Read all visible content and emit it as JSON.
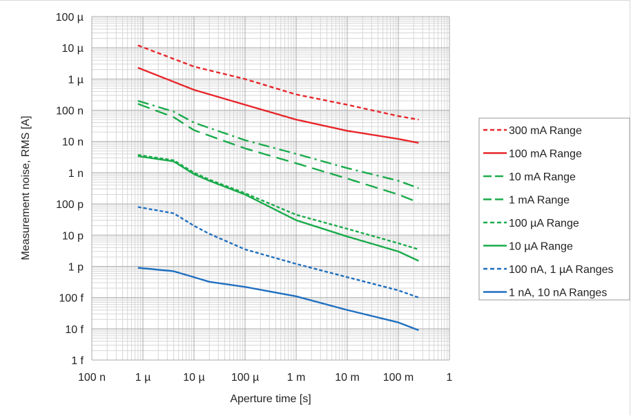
{
  "chart_data": {
    "type": "line",
    "title": "",
    "xlabel": "Aperture time [s]",
    "ylabel": "Measurement noise, RMS [A]",
    "x_scale": "log",
    "y_scale": "log",
    "xlim": [
      1e-07,
      1
    ],
    "ylim": [
      1e-15,
      0.0001
    ],
    "x_ticks": [
      {
        "value": 1e-07,
        "label": "100 n"
      },
      {
        "value": 1e-06,
        "label": "1 µ"
      },
      {
        "value": 1e-05,
        "label": "10 µ"
      },
      {
        "value": 0.0001,
        "label": "100 µ"
      },
      {
        "value": 0.001,
        "label": "1 m"
      },
      {
        "value": 0.01,
        "label": "10 m"
      },
      {
        "value": 0.1,
        "label": "100 m"
      },
      {
        "value": 1,
        "label": "1"
      }
    ],
    "y_ticks": [
      {
        "value": 0.0001,
        "label": "100 µ"
      },
      {
        "value": 1e-05,
        "label": "10 µ"
      },
      {
        "value": 1e-06,
        "label": "1 µ"
      },
      {
        "value": 1e-07,
        "label": "100 n"
      },
      {
        "value": 1e-08,
        "label": "10 n"
      },
      {
        "value": 1e-09,
        "label": "1 n"
      },
      {
        "value": 1e-10,
        "label": "100 p"
      },
      {
        "value": 1e-11,
        "label": "10 p"
      },
      {
        "value": 1e-12,
        "label": "1 p"
      },
      {
        "value": 1e-13,
        "label": "100 f"
      },
      {
        "value": 1e-14,
        "label": "10 f"
      },
      {
        "value": 1e-15,
        "label": "1 f"
      }
    ],
    "grid": true,
    "legend_position": "right",
    "series": [
      {
        "name": "300 mA Range",
        "color": "#e8262a",
        "dash": "dashed",
        "points": [
          [
            8e-07,
            1.2e-05
          ],
          [
            1e-05,
            2.5e-06
          ],
          [
            0.0001,
            1e-06
          ],
          [
            0.001,
            3.2e-07
          ],
          [
            0.01,
            1.5e-07
          ],
          [
            0.1,
            6.5e-08
          ],
          [
            0.25,
            5e-08
          ]
        ]
      },
      {
        "name": "100 mA Range",
        "color": "#e8262a",
        "dash": "solid",
        "points": [
          [
            8e-07,
            2.3e-06
          ],
          [
            1e-05,
            4.5e-07
          ],
          [
            0.0001,
            1.5e-07
          ],
          [
            0.001,
            5e-08
          ],
          [
            0.01,
            2.2e-08
          ],
          [
            0.1,
            1.2e-08
          ],
          [
            0.25,
            9e-09
          ]
        ]
      },
      {
        "name": "10 mA Range",
        "color": "#1aab4b",
        "dash": "dashdot",
        "points": [
          [
            8e-07,
            2e-07
          ],
          [
            4e-06,
            9e-08
          ],
          [
            1e-05,
            4e-08
          ],
          [
            0.0001,
            1.1e-08
          ],
          [
            0.001,
            4e-09
          ],
          [
            0.01,
            1.4e-09
          ],
          [
            0.1,
            5.5e-10
          ],
          [
            0.25,
            3.2e-10
          ]
        ]
      },
      {
        "name": "1 mA Range",
        "color": "#1aab4b",
        "dash": "longdash",
        "points": [
          [
            8e-07,
            1.6e-07
          ],
          [
            4e-06,
            6e-08
          ],
          [
            1e-05,
            2.3e-08
          ],
          [
            0.0001,
            6e-09
          ],
          [
            0.001,
            2e-09
          ],
          [
            0.01,
            6.5e-10
          ],
          [
            0.1,
            2e-10
          ],
          [
            0.25,
            1.1e-10
          ]
        ]
      },
      {
        "name": "100 µA Range",
        "color": "#1aab4b",
        "dash": "shortdash",
        "points": [
          [
            8e-07,
            3.7e-09
          ],
          [
            4e-06,
            2.5e-09
          ],
          [
            1e-05,
            1e-09
          ],
          [
            2e-05,
            6e-10
          ],
          [
            0.0001,
            2.2e-10
          ],
          [
            0.001,
            4.5e-11
          ],
          [
            0.01,
            1.6e-11
          ],
          [
            0.1,
            5.5e-12
          ],
          [
            0.25,
            3.5e-12
          ]
        ]
      },
      {
        "name": "10 µA Range",
        "color": "#1aab4b",
        "dash": "solid",
        "points": [
          [
            8e-07,
            3.4e-09
          ],
          [
            4e-06,
            2.3e-09
          ],
          [
            1e-05,
            9e-10
          ],
          [
            2e-05,
            5.5e-10
          ],
          [
            0.0001,
            2e-10
          ],
          [
            0.001,
            3e-11
          ],
          [
            0.01,
            9e-12
          ],
          [
            0.1,
            3e-12
          ],
          [
            0.25,
            1.5e-12
          ]
        ]
      },
      {
        "name": "100 nA, 1 µA Ranges",
        "color": "#1f6fc0",
        "dash": "shortdash",
        "points": [
          [
            8e-07,
            8e-11
          ],
          [
            4e-06,
            5e-11
          ],
          [
            1e-05,
            2e-11
          ],
          [
            2e-05,
            1.1e-11
          ],
          [
            0.0001,
            3.5e-12
          ],
          [
            0.001,
            1.2e-12
          ],
          [
            0.01,
            4.5e-13
          ],
          [
            0.1,
            1.7e-13
          ],
          [
            0.25,
            1e-13
          ]
        ]
      },
      {
        "name": "1 nA, 10 nA Ranges",
        "color": "#1f6fc0",
        "dash": "solid",
        "points": [
          [
            8e-07,
            9e-13
          ],
          [
            4e-06,
            7e-13
          ],
          [
            1e-05,
            4.5e-13
          ],
          [
            2e-05,
            3.2e-13
          ],
          [
            0.0001,
            2.2e-13
          ],
          [
            0.001,
            1.1e-13
          ],
          [
            0.01,
            4e-14
          ],
          [
            0.1,
            1.6e-14
          ],
          [
            0.25,
            9e-15
          ]
        ]
      }
    ]
  }
}
